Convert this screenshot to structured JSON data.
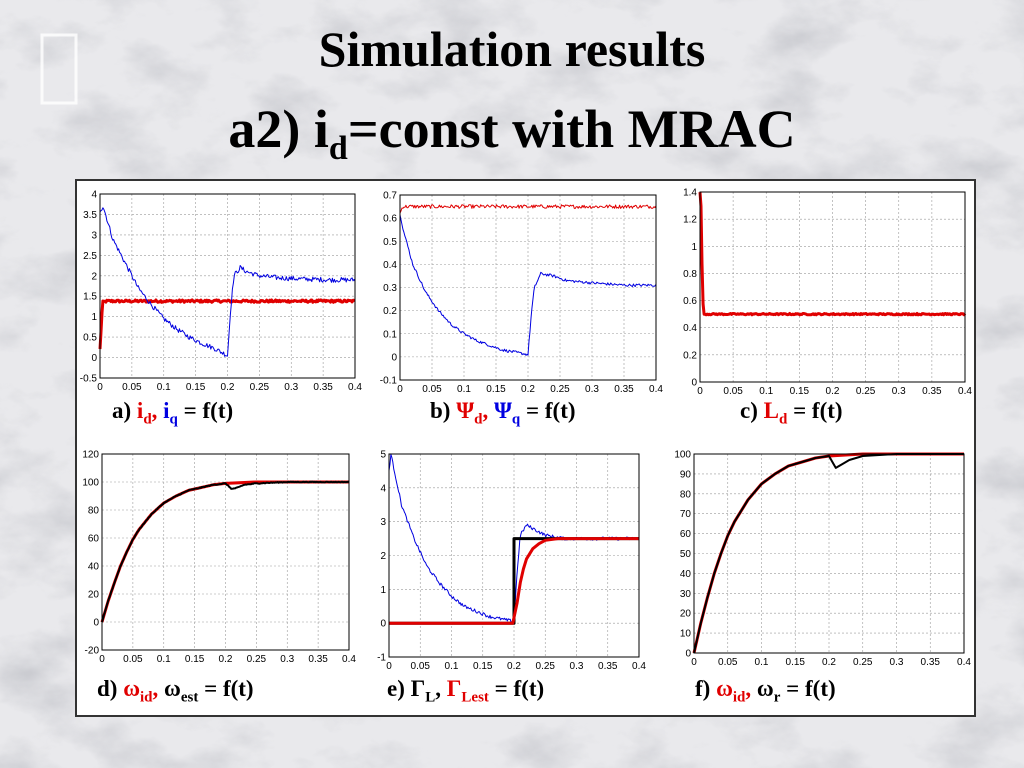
{
  "title": {
    "line1": "Simulation results",
    "line2_prefix": "a2) i",
    "line2_sub": "d",
    "line2_suffix": "=const with MRAC"
  },
  "captions": [
    {
      "prefix": "a) ",
      "s1": "i",
      "s1sub": "d",
      "sep": ", ",
      "s2": "i",
      "s2sub": "q",
      "suffix": " = f(t)",
      "c1": "#e00000",
      "c2": "#0000e0"
    },
    {
      "prefix": "b) ",
      "s1": "Ψ",
      "s1sub": "d",
      "sep": ", ",
      "s2": "Ψ",
      "s2sub": "q",
      "suffix": " = f(t)",
      "c1": "#e00000",
      "c2": "#0000e0"
    },
    {
      "prefix": "c)  ",
      "s1": "L",
      "s1sub": "d",
      "sep": "",
      "s2": "",
      "s2sub": "",
      "suffix": " = f(t)",
      "c1": "#e00000",
      "c2": "#000000"
    },
    {
      "prefix": "d) ",
      "s1": "ω",
      "s1sub": "id",
      "sep": ", ",
      "s2": "ω",
      "s2sub": "est",
      "suffix": " = f(t)",
      "c1": "#e00000",
      "c2": "#000000"
    },
    {
      "prefix": "e) ",
      "s1": "Γ",
      "s1sub": "L",
      "sep": ", ",
      "s2": "Γ",
      "s2sub": "Lest",
      "suffix": " = f(t)",
      "c1": "#000000",
      "c2": "#e00000"
    },
    {
      "prefix": "f) ",
      "s1": "ω",
      "s1sub": "id",
      "sep": ", ",
      "s2": "ω",
      "s2sub": "r",
      "suffix": " = f(t)",
      "c1": "#e00000",
      "c2": "#000000"
    }
  ],
  "colors": {
    "red": "#e00000",
    "blue": "#0000e0",
    "black": "#000000"
  },
  "chart_data": [
    {
      "type": "line",
      "xlim": [
        0,
        0.4
      ],
      "ylim": [
        -0.5,
        4
      ],
      "xticks": [
        "0",
        "0.05",
        "0.1",
        "0.15",
        "0.2",
        "0.25",
        "0.3",
        "0.35",
        "0.4"
      ],
      "yticks": [
        "-0.5",
        "0",
        "0.5",
        "1",
        "1.5",
        "2",
        "2.5",
        "3",
        "3.5",
        "4"
      ],
      "grid": true,
      "series": [
        {
          "color": "#e00000",
          "width": 3,
          "x": [
            0,
            0.004,
            0.01,
            0.4
          ],
          "y": [
            0.2,
            1.35,
            1.38,
            1.38
          ],
          "noise": 0.03
        },
        {
          "color": "#0000e0",
          "width": 1,
          "x": [
            0,
            0.005,
            0.02,
            0.04,
            0.06,
            0.08,
            0.1,
            0.12,
            0.14,
            0.16,
            0.18,
            0.2,
            0.2,
            0.205,
            0.21,
            0.22,
            0.23,
            0.25,
            0.28,
            0.32,
            0.36,
            0.4
          ],
          "y": [
            3.6,
            3.7,
            2.9,
            2.3,
            1.7,
            1.3,
            0.95,
            0.7,
            0.5,
            0.35,
            0.22,
            0.05,
            0.05,
            1.2,
            2.0,
            2.2,
            2.1,
            2.0,
            1.95,
            1.92,
            1.9,
            1.9
          ],
          "noise": 0.06
        }
      ]
    },
    {
      "type": "line",
      "xlim": [
        0,
        0.4
      ],
      "ylim": [
        -0.1,
        0.7
      ],
      "xticks": [
        "0",
        "0.05",
        "0.1",
        "0.15",
        "0.2",
        "0.25",
        "0.3",
        "0.35",
        "0.4"
      ],
      "yticks": [
        "-0.1",
        "0",
        "0.1",
        "0.2",
        "0.3",
        "0.4",
        "0.5",
        "0.6",
        "0.7"
      ],
      "grid": true,
      "series": [
        {
          "color": "#e00000",
          "width": 1,
          "x": [
            0,
            0.004,
            0.4
          ],
          "y": [
            0.62,
            0.65,
            0.65
          ],
          "noise": 0.008
        },
        {
          "color": "#0000e0",
          "width": 1,
          "x": [
            0,
            0.005,
            0.02,
            0.04,
            0.06,
            0.08,
            0.1,
            0.12,
            0.14,
            0.16,
            0.18,
            0.2,
            0.2,
            0.205,
            0.21,
            0.22,
            0.24,
            0.26,
            0.3,
            0.35,
            0.4
          ],
          "y": [
            0.62,
            0.55,
            0.4,
            0.28,
            0.2,
            0.14,
            0.1,
            0.07,
            0.05,
            0.03,
            0.02,
            0.01,
            0.01,
            0.18,
            0.3,
            0.36,
            0.35,
            0.33,
            0.32,
            0.31,
            0.31
          ],
          "noise": 0.006
        }
      ]
    },
    {
      "type": "line",
      "xlim": [
        0,
        0.4
      ],
      "ylim": [
        0,
        1.4
      ],
      "xticks": [
        "0",
        "0.05",
        "0.1",
        "0.15",
        "0.2",
        "0.25",
        "0.3",
        "0.35",
        "0.4"
      ],
      "yticks": [
        "0",
        "0.2",
        "0.4",
        "0.6",
        "0.8",
        "1",
        "1.2",
        "1.4"
      ],
      "grid": true,
      "series": [
        {
          "color": "#e00000",
          "width": 3,
          "x": [
            0,
            0.001,
            0.002,
            0.004,
            0.006,
            0.4
          ],
          "y": [
            1.4,
            1.4,
            1.2,
            0.6,
            0.5,
            0.5
          ],
          "noise": 0.005
        }
      ]
    },
    {
      "type": "line",
      "xlim": [
        0,
        0.4
      ],
      "ylim": [
        -20,
        120
      ],
      "xticks": [
        "0",
        "0.05",
        "0.1",
        "0.15",
        "0.2",
        "0.25",
        "0.3",
        "0.35",
        "0.4"
      ],
      "yticks": [
        "-20",
        "0",
        "20",
        "40",
        "60",
        "80",
        "100",
        "120"
      ],
      "grid": true,
      "series": [
        {
          "color": "#e00000",
          "width": 3,
          "x": [
            0,
            0.01,
            0.02,
            0.03,
            0.04,
            0.05,
            0.06,
            0.08,
            0.1,
            0.12,
            0.14,
            0.16,
            0.18,
            0.2,
            0.25,
            0.3,
            0.35,
            0.4
          ],
          "y": [
            0,
            15,
            28,
            40,
            50,
            59,
            66,
            77,
            85,
            90,
            94,
            96,
            98,
            99,
            100,
            100,
            100,
            100
          ],
          "noise": 0
        },
        {
          "color": "#000000",
          "width": 2,
          "x": [
            0,
            0.01,
            0.02,
            0.03,
            0.04,
            0.05,
            0.06,
            0.08,
            0.1,
            0.12,
            0.14,
            0.16,
            0.18,
            0.2,
            0.205,
            0.21,
            0.22,
            0.23,
            0.25,
            0.3,
            0.35,
            0.4
          ],
          "y": [
            0,
            15,
            28,
            40,
            50,
            59,
            66,
            77,
            85,
            90,
            94,
            96,
            98,
            99,
            97,
            95,
            96,
            98,
            99,
            100,
            100,
            100
          ],
          "noise": 0.3
        }
      ]
    },
    {
      "type": "line",
      "xlim": [
        0,
        0.4
      ],
      "ylim": [
        -1,
        5
      ],
      "xticks": [
        "0",
        "0.05",
        "0.1",
        "0.15",
        "0.2",
        "0.25",
        "0.3",
        "0.35",
        "0.4"
      ],
      "yticks": [
        "-1",
        "0",
        "1",
        "2",
        "3",
        "4",
        "5"
      ],
      "grid": true,
      "series": [
        {
          "color": "#0000e0",
          "width": 1,
          "x": [
            0,
            0.003,
            0.02,
            0.04,
            0.06,
            0.08,
            0.1,
            0.12,
            0.14,
            0.16,
            0.18,
            0.2,
            0.2,
            0.205,
            0.21,
            0.22,
            0.23,
            0.25,
            0.28,
            0.32,
            0.36,
            0.4
          ],
          "y": [
            4.5,
            5,
            3.5,
            2.5,
            1.7,
            1.2,
            0.8,
            0.5,
            0.35,
            0.2,
            0.12,
            0.05,
            0.05,
            1.5,
            2.6,
            2.9,
            2.8,
            2.6,
            2.5,
            2.5,
            2.5,
            2.5
          ],
          "noise": 0.05
        },
        {
          "color": "#000000",
          "width": 3,
          "x": [
            0,
            0.2,
            0.2,
            0.4
          ],
          "y": [
            0,
            0,
            2.5,
            2.5
          ],
          "noise": 0
        },
        {
          "color": "#e00000",
          "width": 3,
          "x": [
            0,
            0.198,
            0.205,
            0.21,
            0.215,
            0.22,
            0.23,
            0.24,
            0.25,
            0.27,
            0.3,
            0.35,
            0.4
          ],
          "y": [
            0,
            0,
            0.6,
            1.2,
            1.6,
            1.9,
            2.2,
            2.35,
            2.45,
            2.5,
            2.5,
            2.5,
            2.5
          ],
          "noise": 0
        }
      ]
    },
    {
      "type": "line",
      "xlim": [
        0,
        0.4
      ],
      "ylim": [
        0,
        100
      ],
      "xticks": [
        "0",
        "0.05",
        "0.1",
        "0.15",
        "0.2",
        "0.25",
        "0.3",
        "0.35",
        "0.4"
      ],
      "yticks": [
        "0",
        "10",
        "20",
        "30",
        "40",
        "50",
        "60",
        "70",
        "80",
        "90",
        "100"
      ],
      "grid": true,
      "series": [
        {
          "color": "#e00000",
          "width": 3,
          "x": [
            0,
            0.01,
            0.02,
            0.03,
            0.04,
            0.05,
            0.06,
            0.08,
            0.1,
            0.12,
            0.14,
            0.16,
            0.18,
            0.2,
            0.25,
            0.3,
            0.35,
            0.4
          ],
          "y": [
            0,
            15,
            28,
            40,
            50,
            59,
            66,
            77,
            85,
            90,
            94,
            96,
            98,
            99,
            100,
            100,
            100,
            100
          ],
          "noise": 0
        },
        {
          "color": "#000000",
          "width": 2,
          "x": [
            0,
            0.01,
            0.02,
            0.03,
            0.04,
            0.05,
            0.06,
            0.08,
            0.1,
            0.12,
            0.14,
            0.16,
            0.18,
            0.2,
            0.205,
            0.21,
            0.22,
            0.23,
            0.25,
            0.3,
            0.35,
            0.4
          ],
          "y": [
            0,
            15,
            28,
            40,
            50,
            59,
            66,
            77,
            85,
            90,
            94,
            96,
            98,
            99,
            96,
            93,
            95,
            97,
            99,
            100,
            100,
            100
          ],
          "noise": 0
        }
      ]
    }
  ]
}
